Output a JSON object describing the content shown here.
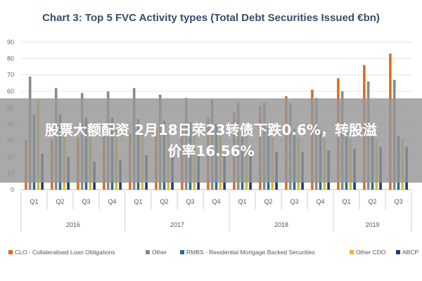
{
  "chart_data": {
    "type": "bar",
    "title": "Chart 3: Top 5 FVC Activity types (Total Debt Securities Issued €bn)",
    "xlabel": "",
    "ylabel": "",
    "ylim": [
      0,
      90
    ],
    "yticks": [
      0,
      10,
      20,
      30,
      40,
      50,
      60,
      70,
      80,
      90
    ],
    "grid": true,
    "legend_position": "bottom",
    "categories": [
      "Q1",
      "Q2",
      "Q3",
      "Q4",
      "Q1",
      "Q2",
      "Q3",
      "Q4",
      "Q1",
      "Q2",
      "Q3",
      "Q4",
      "Q1",
      "Q2",
      "Q3"
    ],
    "groups": [
      {
        "label": "2016",
        "count": 4
      },
      {
        "label": "2017",
        "count": 4
      },
      {
        "label": "2018",
        "count": 4
      },
      {
        "label": "2019",
        "count": 3
      }
    ],
    "series": [
      {
        "name": "CLO - Collateralised Loan Obligations",
        "color": "#e06c1c",
        "values": [
          30,
          31,
          32,
          33,
          34,
          37,
          40,
          44,
          47,
          51,
          57,
          61,
          68,
          76,
          83
        ]
      },
      {
        "name": "Other",
        "color": "#8a8a8a",
        "values": [
          69,
          62,
          59,
          60,
          62,
          58,
          56,
          55,
          53,
          53,
          53,
          56,
          60,
          66,
          67
        ]
      },
      {
        "name": "RMBS - Residential Mortgage Backed Securities",
        "color": "#1f6e93",
        "values": [
          46,
          46,
          44,
          44,
          43,
          42,
          41,
          40,
          39,
          38,
          37,
          36,
          35,
          34,
          33
        ]
      },
      {
        "name": "Other CDO",
        "color": "#e8b821",
        "values": [
          55,
          40,
          38,
          37,
          36,
          35,
          34,
          33,
          33,
          32,
          32,
          31,
          31,
          31,
          31
        ]
      },
      {
        "name": "ABCP",
        "color": "#1c3a78",
        "values": [
          22,
          20,
          17,
          18,
          21,
          20,
          22,
          22,
          23,
          23,
          23,
          24,
          25,
          26,
          26
        ]
      }
    ]
  },
  "banner": {
    "line1": "股票大额配资 2月18日荣23转债下跌0.6%，转股溢",
    "line2": "价率16.56%"
  }
}
